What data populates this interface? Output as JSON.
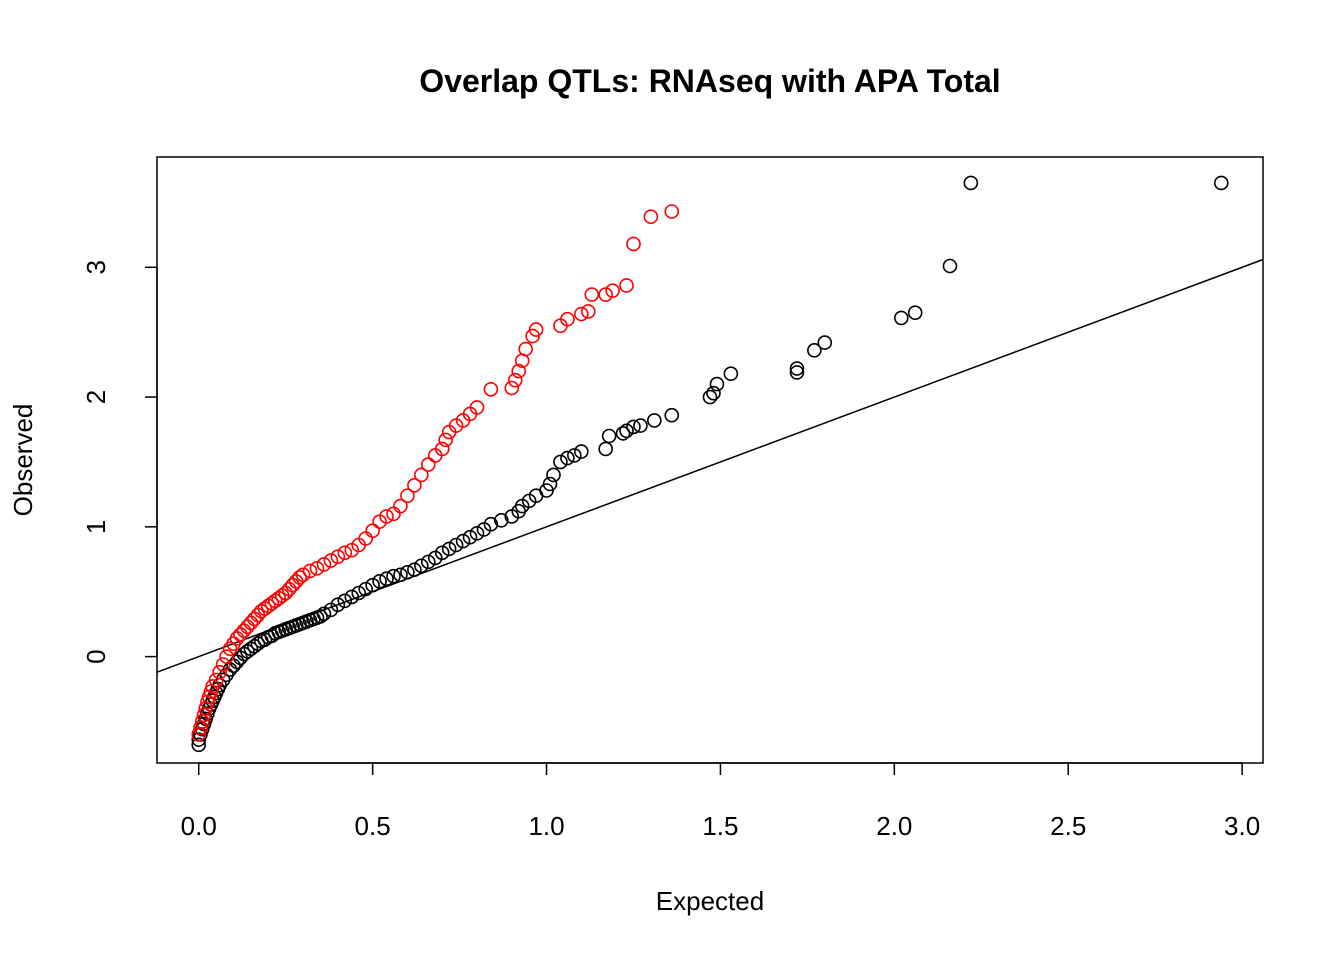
{
  "chart_data": {
    "type": "scatter",
    "title": "Overlap QTLs: RNAseq with APA Total",
    "xlabel": "Expected",
    "ylabel": "Observed",
    "xlim": [
      -0.12,
      3.06
    ],
    "ylim": [
      -0.82,
      3.85
    ],
    "x_ticks": [
      0.0,
      0.5,
      1.0,
      1.5,
      2.0,
      2.5,
      3.0
    ],
    "x_tick_labels": [
      "0.0",
      "0.5",
      "1.0",
      "1.5",
      "2.0",
      "2.5",
      "3.0"
    ],
    "y_ticks": [
      0,
      1,
      2,
      3
    ],
    "y_tick_labels": [
      "0",
      "1",
      "2",
      "3"
    ],
    "grid": false,
    "reference_line": {
      "intercept": 0,
      "slope": 1
    },
    "series": [
      {
        "color": "#000000",
        "x": [
          0.0,
          0.0,
          0.005,
          0.01,
          0.015,
          0.02,
          0.025,
          0.03,
          0.035,
          0.04,
          0.045,
          0.05,
          0.055,
          0.06,
          0.07,
          0.08,
          0.09,
          0.1,
          0.11,
          0.12,
          0.13,
          0.14,
          0.15,
          0.16,
          0.17,
          0.18,
          0.19,
          0.2,
          0.21,
          0.22,
          0.23,
          0.24,
          0.25,
          0.26,
          0.27,
          0.28,
          0.29,
          0.3,
          0.31,
          0.32,
          0.33,
          0.34,
          0.35,
          0.36,
          0.38,
          0.4,
          0.42,
          0.44,
          0.46,
          0.48,
          0.5,
          0.52,
          0.54,
          0.56,
          0.58,
          0.6,
          0.62,
          0.64,
          0.66,
          0.68,
          0.7,
          0.72,
          0.74,
          0.76,
          0.78,
          0.8,
          0.82,
          0.84,
          0.87,
          0.9,
          0.92,
          0.93,
          0.95,
          0.97,
          1.0,
          1.01,
          1.02,
          1.04,
          1.06,
          1.08,
          1.1,
          1.17,
          1.18,
          1.22,
          1.23,
          1.25,
          1.27,
          1.31,
          1.36,
          1.47,
          1.48,
          1.49,
          1.53,
          1.72,
          1.72,
          1.77,
          1.8,
          2.02,
          2.06,
          2.16,
          2.22,
          2.94
        ],
        "y": [
          -0.68,
          -0.64,
          -0.6,
          -0.56,
          -0.52,
          -0.48,
          -0.44,
          -0.4,
          -0.37,
          -0.34,
          -0.31,
          -0.28,
          -0.25,
          -0.22,
          -0.18,
          -0.14,
          -0.1,
          -0.07,
          -0.04,
          -0.01,
          0.02,
          0.04,
          0.06,
          0.08,
          0.1,
          0.12,
          0.13,
          0.15,
          0.16,
          0.18,
          0.19,
          0.2,
          0.21,
          0.22,
          0.23,
          0.24,
          0.25,
          0.26,
          0.27,
          0.28,
          0.29,
          0.3,
          0.31,
          0.33,
          0.36,
          0.4,
          0.43,
          0.46,
          0.49,
          0.52,
          0.55,
          0.58,
          0.6,
          0.62,
          0.63,
          0.65,
          0.67,
          0.7,
          0.73,
          0.76,
          0.8,
          0.83,
          0.86,
          0.89,
          0.92,
          0.95,
          0.98,
          1.02,
          1.05,
          1.08,
          1.12,
          1.16,
          1.2,
          1.24,
          1.28,
          1.33,
          1.4,
          1.5,
          1.53,
          1.55,
          1.58,
          1.6,
          1.7,
          1.72,
          1.74,
          1.77,
          1.78,
          1.82,
          1.86,
          2.0,
          2.03,
          2.1,
          2.18,
          2.19,
          2.22,
          2.36,
          2.42,
          2.61,
          2.65,
          3.01,
          3.65,
          3.65
        ]
      },
      {
        "color": "#ff0000",
        "x": [
          0.0,
          0.005,
          0.01,
          0.015,
          0.02,
          0.025,
          0.03,
          0.035,
          0.04,
          0.05,
          0.06,
          0.07,
          0.08,
          0.09,
          0.1,
          0.11,
          0.12,
          0.13,
          0.14,
          0.15,
          0.16,
          0.17,
          0.18,
          0.19,
          0.2,
          0.21,
          0.22,
          0.23,
          0.24,
          0.25,
          0.26,
          0.27,
          0.28,
          0.29,
          0.3,
          0.32,
          0.34,
          0.36,
          0.38,
          0.4,
          0.42,
          0.44,
          0.46,
          0.48,
          0.5,
          0.52,
          0.54,
          0.56,
          0.58,
          0.6,
          0.62,
          0.64,
          0.66,
          0.68,
          0.7,
          0.71,
          0.72,
          0.74,
          0.76,
          0.78,
          0.8,
          0.84,
          0.9,
          0.91,
          0.92,
          0.93,
          0.94,
          0.96,
          0.97,
          1.04,
          1.06,
          1.1,
          1.12,
          1.13,
          1.17,
          1.19,
          1.23,
          1.25,
          1.3,
          1.36
        ],
        "y": [
          -0.6,
          -0.55,
          -0.5,
          -0.45,
          -0.4,
          -0.35,
          -0.31,
          -0.27,
          -0.23,
          -0.18,
          -0.12,
          -0.06,
          0.0,
          0.06,
          0.1,
          0.14,
          0.17,
          0.2,
          0.23,
          0.26,
          0.29,
          0.32,
          0.35,
          0.37,
          0.39,
          0.41,
          0.43,
          0.45,
          0.47,
          0.49,
          0.52,
          0.55,
          0.58,
          0.61,
          0.63,
          0.66,
          0.68,
          0.71,
          0.74,
          0.77,
          0.8,
          0.82,
          0.86,
          0.91,
          0.97,
          1.04,
          1.08,
          1.1,
          1.16,
          1.24,
          1.32,
          1.4,
          1.48,
          1.55,
          1.6,
          1.67,
          1.73,
          1.78,
          1.82,
          1.87,
          1.92,
          2.06,
          2.07,
          2.13,
          2.2,
          2.28,
          2.37,
          2.47,
          2.52,
          2.55,
          2.6,
          2.64,
          2.66,
          2.79,
          2.79,
          2.82,
          2.86,
          3.18,
          3.39,
          3.43
        ]
      }
    ]
  }
}
